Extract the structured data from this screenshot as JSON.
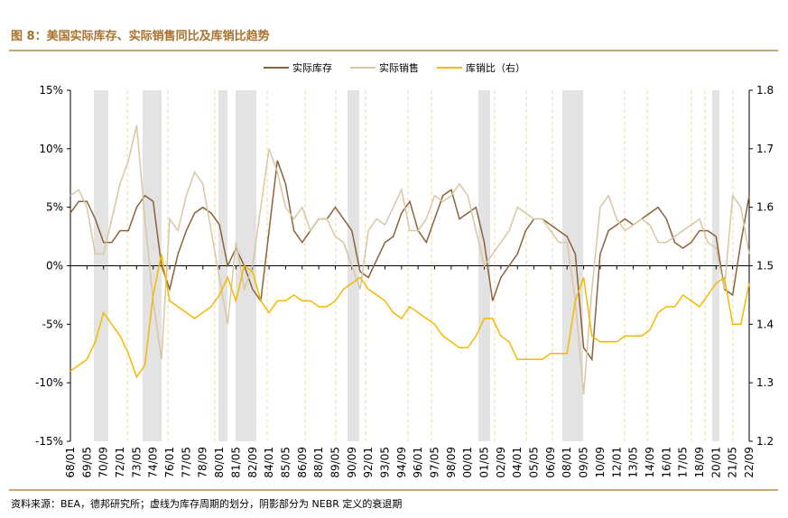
{
  "chart_data": {
    "type": "line",
    "title": "图 8：美国实际库存、实际销售同比及库销比趋势",
    "source": "资料来源：BEA，德邦研究所；虚线为库存周期的划分，阴影部分为 NEBR 定义的衰退期",
    "categories": [
      "68/01",
      null,
      "69/05",
      null,
      "70/09",
      null,
      "72/01",
      null,
      "73/05",
      null,
      "74/09",
      null,
      "76/01",
      null,
      "77/05",
      null,
      "78/09",
      null,
      "80/01",
      null,
      "81/05",
      null,
      "82/09",
      null,
      "84/01",
      null,
      "85/05",
      null,
      "86/09",
      null,
      "88/01",
      null,
      "89/05",
      null,
      "90/09",
      null,
      "92/01",
      null,
      "93/05",
      null,
      "94/09",
      null,
      "96/01",
      null,
      "97/05",
      null,
      "98/09",
      null,
      "00/01",
      null,
      "01/05",
      null,
      "02/09",
      null,
      "04/01",
      null,
      "05/05",
      null,
      "06/09",
      null,
      "08/01",
      null,
      "09/05",
      null,
      "10/09",
      null,
      "12/01",
      null,
      "13/05",
      null,
      "14/09",
      null,
      "16/01",
      null,
      "17/05",
      null,
      "18/09",
      null,
      "20/01",
      null,
      "21/05",
      null,
      "22/09"
    ],
    "series": [
      {
        "name": "实际库存",
        "color": "#8c6239",
        "values": [
          4.5,
          5.5,
          5.5,
          4,
          2,
          2,
          3,
          3,
          5,
          6,
          5.5,
          0,
          -2,
          1,
          3,
          4.5,
          5,
          4.5,
          3.5,
          0,
          1.5,
          0,
          -2,
          -3,
          3,
          9,
          7,
          3,
          2,
          3,
          4,
          4,
          5,
          4,
          3,
          -0.5,
          -1,
          0.5,
          2,
          2.5,
          4.5,
          5.5,
          3,
          2,
          4,
          6,
          6.5,
          4,
          4.5,
          5,
          2,
          -3,
          -1,
          0,
          1,
          3,
          4,
          4,
          3.5,
          3,
          2.5,
          1,
          -7,
          -8,
          1,
          3,
          3.5,
          4,
          3.5,
          4,
          4.5,
          5,
          4,
          2,
          1.5,
          2,
          3,
          3,
          2.5,
          -2,
          -2.5,
          2,
          6
        ]
      },
      {
        "name": "实际销售",
        "color": "#d8c7a3",
        "values": [
          6,
          6.5,
          5,
          1,
          1,
          4,
          7,
          9,
          12,
          4,
          -3,
          -8,
          4,
          3,
          6,
          8,
          7,
          3,
          -1,
          -5,
          2,
          -2,
          0,
          5,
          10,
          8,
          5,
          4,
          5,
          3,
          4,
          4,
          2.5,
          2,
          0,
          -2,
          3,
          4,
          3.5,
          5,
          6.5,
          3,
          3,
          4,
          6,
          5.5,
          6,
          7,
          6,
          3,
          0,
          1,
          2,
          3,
          5,
          4.5,
          4,
          4,
          3,
          2,
          2,
          -3,
          -11,
          -2,
          5,
          6,
          4,
          3,
          3.5,
          4,
          3.5,
          2,
          2,
          2.5,
          3,
          3.5,
          4,
          2,
          1.5,
          -2,
          6,
          5,
          1
        ]
      },
      {
        "name": "库销比（右）",
        "color": "#f5b800",
        "axis": "y2",
        "values": [
          1.32,
          1.33,
          1.34,
          1.37,
          1.42,
          1.4,
          1.38,
          1.35,
          1.31,
          1.33,
          1.45,
          1.52,
          1.44,
          1.43,
          1.42,
          1.41,
          1.42,
          1.43,
          1.45,
          1.48,
          1.44,
          1.5,
          1.49,
          1.44,
          1.42,
          1.44,
          1.44,
          1.45,
          1.44,
          1.44,
          1.43,
          1.43,
          1.44,
          1.46,
          1.47,
          1.48,
          1.46,
          1.45,
          1.44,
          1.42,
          1.41,
          1.43,
          1.42,
          1.41,
          1.4,
          1.38,
          1.37,
          1.36,
          1.36,
          1.38,
          1.41,
          1.41,
          1.38,
          1.37,
          1.34,
          1.34,
          1.34,
          1.34,
          1.35,
          1.35,
          1.35,
          1.44,
          1.48,
          1.38,
          1.37,
          1.37,
          1.37,
          1.38,
          1.38,
          1.38,
          1.39,
          1.42,
          1.43,
          1.43,
          1.45,
          1.44,
          1.43,
          1.45,
          1.47,
          1.48,
          1.4,
          1.4,
          1.47
        ]
      }
    ],
    "ylim": [
      -15,
      15
    ],
    "yticks": [
      {
        "value": -15,
        "label": "-15%"
      },
      {
        "value": -10,
        "label": "-10%"
      },
      {
        "value": -5,
        "label": "-5%"
      },
      {
        "value": 0,
        "label": "0%"
      },
      {
        "value": 5,
        "label": "5%"
      },
      {
        "value": 10,
        "label": "10%"
      },
      {
        "value": 15,
        "label": "15%"
      }
    ],
    "y2lim": [
      1.2,
      1.8
    ],
    "y2ticks": [
      1.2,
      1.3,
      1.4,
      1.5,
      1.6,
      1.7,
      1.8
    ],
    "legend": "top"
  }
}
